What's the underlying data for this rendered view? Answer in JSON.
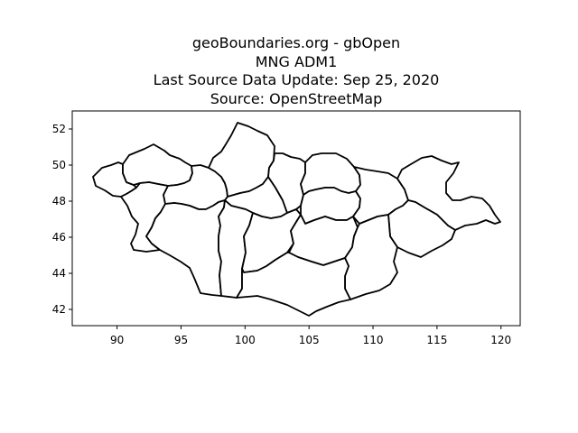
{
  "title_lines": [
    "geoBoundaries.org - gbOpen",
    "MNG ADM1",
    "Last Source Data Update: Sep 25, 2020",
    "Source: OpenStreetMap"
  ],
  "chart_data": {
    "type": "map",
    "xlim": [
      86.5,
      121.5
    ],
    "ylim": [
      41.1,
      53.0
    ],
    "x_ticks": [
      90,
      95,
      100,
      105,
      110,
      115,
      120
    ],
    "y_ticks": [
      42,
      44,
      46,
      48,
      50,
      52
    ],
    "grid": false,
    "line_color": "#000000"
  }
}
